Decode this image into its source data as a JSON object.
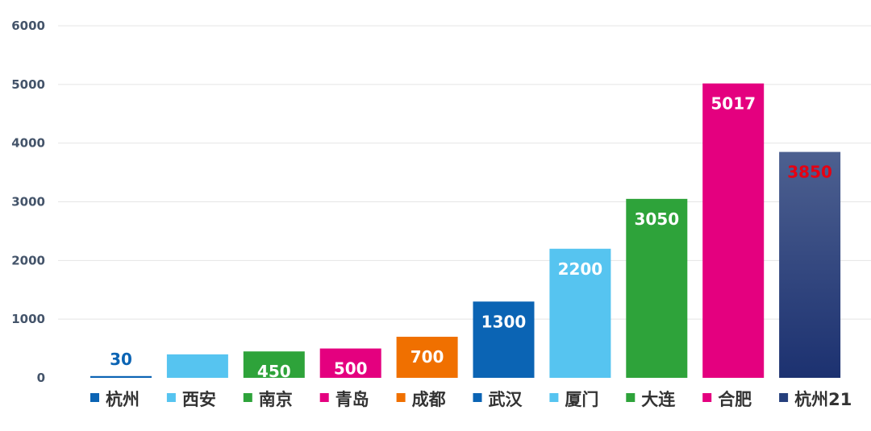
{
  "chart_data": {
    "type": "bar",
    "title": "",
    "xlabel": "",
    "ylabel": "",
    "ylim": [
      0,
      6000
    ],
    "yticks": [
      0,
      1000,
      2000,
      3000,
      4000,
      5000,
      6000
    ],
    "grid": true,
    "legend": "none",
    "categories": [
      "杭州",
      "西安",
      "南京",
      "青岛",
      "成都",
      "武汉",
      "厦门",
      "大连",
      "合肥",
      "杭州21"
    ],
    "values": [
      30,
      400,
      450,
      500,
      700,
      1300,
      2200,
      3050,
      5017,
      3850
    ],
    "colors": [
      "#0b64b4",
      "#56c4f0",
      "#2ea33a",
      "#e4007f",
      "#f07000",
      "#0b64b4",
      "#56c4f0",
      "#2ea33a",
      "#e4007f",
      "#253f7c"
    ],
    "label_colors": [
      "#0b64b4",
      "#ffffff",
      "#ffffff",
      "#ffffff",
      "#ffffff",
      "#ffffff",
      "#ffffff",
      "#ffffff",
      "#ffffff",
      "#e60012"
    ],
    "gradient_last": {
      "top": "#4d6090",
      "bottom": "#1c3170"
    }
  }
}
